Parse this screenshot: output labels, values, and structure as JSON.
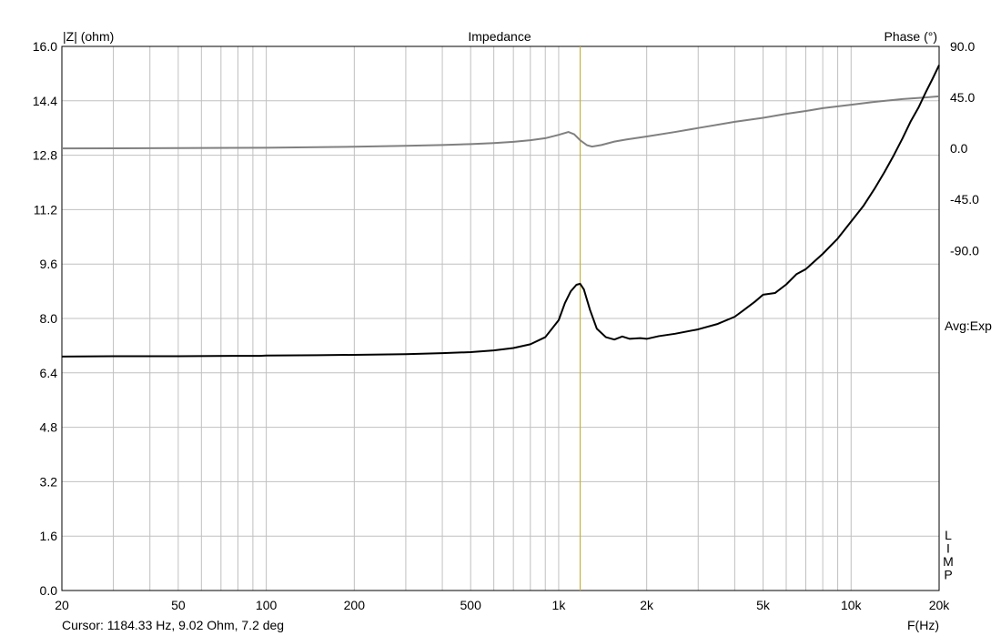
{
  "chart_data": {
    "type": "line",
    "title": "Impedance",
    "left_axis_label": "|Z| (ohm)",
    "right_axis_label": "Phase (°)",
    "x_axis_label": "F(Hz)",
    "x_scale": "log",
    "xlim": [
      20,
      20000
    ],
    "ylim_left": [
      0,
      16
    ],
    "ylim_right": [
      -390,
      90
    ],
    "grid": true,
    "x_ticks": [
      {
        "value": 20,
        "label": "20"
      },
      {
        "value": 50,
        "label": "50"
      },
      {
        "value": 100,
        "label": "100"
      },
      {
        "value": 200,
        "label": "200"
      },
      {
        "value": 500,
        "label": "500"
      },
      {
        "value": 1000,
        "label": "1k"
      },
      {
        "value": 2000,
        "label": "2k"
      },
      {
        "value": 5000,
        "label": "5k"
      },
      {
        "value": 10000,
        "label": "10k"
      },
      {
        "value": 20000,
        "label": "20k"
      }
    ],
    "y_left_ticks": [
      "0.0",
      "1.6",
      "3.2",
      "4.8",
      "6.4",
      "8.0",
      "9.6",
      "11.2",
      "12.8",
      "14.4",
      "16.0"
    ],
    "y_right_ticks": [
      {
        "value": 90,
        "label": "90.0"
      },
      {
        "value": 45,
        "label": "45.0"
      },
      {
        "value": 0,
        "label": "0.0"
      },
      {
        "value": -45,
        "label": "-45.0"
      },
      {
        "value": -90,
        "label": "-90.0"
      }
    ],
    "cursor_frequency": 1184.33,
    "cursor_text": "Cursor: 1184.33 Hz, 9.02 Ohm, 7.2 deg",
    "avg_label": "Avg:Exp",
    "limit_label": "LIMP",
    "colors": {
      "impedance": "#000000",
      "phase": "#808080",
      "cursor": "#c8b040",
      "grid": "#c0c0c0"
    },
    "series": [
      {
        "axis": "left",
        "data": [
          [
            20,
            6.88
          ],
          [
            30,
            6.89
          ],
          [
            50,
            6.89
          ],
          [
            80,
            6.9
          ],
          [
            95,
            6.9
          ],
          [
            100,
            6.91
          ],
          [
            150,
            6.92
          ],
          [
            200,
            6.93
          ],
          [
            300,
            6.95
          ],
          [
            400,
            6.98
          ],
          [
            500,
            7.01
          ],
          [
            600,
            7.06
          ],
          [
            700,
            7.13
          ],
          [
            800,
            7.24
          ],
          [
            900,
            7.45
          ],
          [
            1000,
            7.95
          ],
          [
            1050,
            8.45
          ],
          [
            1100,
            8.8
          ],
          [
            1150,
            8.99
          ],
          [
            1184.33,
            9.02
          ],
          [
            1220,
            8.85
          ],
          [
            1280,
            8.25
          ],
          [
            1350,
            7.7
          ],
          [
            1450,
            7.45
          ],
          [
            1550,
            7.38
          ],
          [
            1650,
            7.47
          ],
          [
            1750,
            7.4
          ],
          [
            1900,
            7.42
          ],
          [
            2000,
            7.4
          ],
          [
            2200,
            7.48
          ],
          [
            2500,
            7.55
          ],
          [
            3000,
            7.68
          ],
          [
            3500,
            7.84
          ],
          [
            4000,
            8.05
          ],
          [
            4300,
            8.25
          ],
          [
            4700,
            8.5
          ],
          [
            5000,
            8.7
          ],
          [
            5500,
            8.75
          ],
          [
            6000,
            9.0
          ],
          [
            6500,
            9.3
          ],
          [
            7000,
            9.45
          ],
          [
            8000,
            9.9
          ],
          [
            9000,
            10.35
          ],
          [
            10000,
            10.85
          ],
          [
            11000,
            11.3
          ],
          [
            12000,
            11.8
          ],
          [
            13000,
            12.3
          ],
          [
            14000,
            12.8
          ],
          [
            15000,
            13.3
          ],
          [
            16000,
            13.8
          ],
          [
            17000,
            14.2
          ],
          [
            18000,
            14.65
          ],
          [
            19000,
            15.05
          ],
          [
            20000,
            15.45
          ]
        ]
      },
      {
        "axis": "right",
        "data": [
          [
            20,
            0.0
          ],
          [
            50,
            0.3
          ],
          [
            100,
            0.6
          ],
          [
            200,
            1.5
          ],
          [
            300,
            2.3
          ],
          [
            400,
            3.0
          ],
          [
            500,
            3.8
          ],
          [
            600,
            4.7
          ],
          [
            700,
            5.8
          ],
          [
            800,
            7.2
          ],
          [
            900,
            9.0
          ],
          [
            1000,
            12.0
          ],
          [
            1080,
            14.5
          ],
          [
            1130,
            12.5
          ],
          [
            1184.33,
            7.2
          ],
          [
            1250,
            2.8
          ],
          [
            1300,
            1.6
          ],
          [
            1400,
            3.0
          ],
          [
            1550,
            6.0
          ],
          [
            1700,
            7.8
          ],
          [
            2000,
            10.5
          ],
          [
            2500,
            14.5
          ],
          [
            3000,
            18.0
          ],
          [
            4000,
            23.5
          ],
          [
            5000,
            27.0
          ],
          [
            6000,
            30.5
          ],
          [
            7000,
            33.0
          ],
          [
            8000,
            35.5
          ],
          [
            10000,
            38.5
          ],
          [
            12000,
            41.0
          ],
          [
            15000,
            43.5
          ],
          [
            18000,
            45.0
          ],
          [
            20000,
            46.0
          ]
        ]
      }
    ]
  }
}
